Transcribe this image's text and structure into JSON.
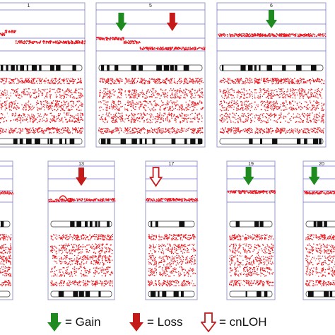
{
  "colors": {
    "gain": "#1f8a1f",
    "loss": "#c41a1a",
    "cnloh_outline": "#c41a1a",
    "dots": "#e8141a",
    "panel_border": "#9a9ac8",
    "grid": "#6b6bd6",
    "band_dark": "#111111"
  },
  "panels": [
    {
      "chromosome": "1",
      "markers": []
    },
    {
      "chromosome": "5",
      "markers": [
        "gain",
        "loss"
      ]
    },
    {
      "chromosome": "6",
      "markers": [
        "gain"
      ]
    },
    {
      "chromosome": "",
      "markers": []
    },
    {
      "chromosome": "13",
      "markers": [
        "loss"
      ]
    },
    {
      "chromosome": "17",
      "markers": [
        "cnloh"
      ]
    },
    {
      "chromosome": "19",
      "markers": [
        "gain"
      ]
    },
    {
      "chromosome": "20",
      "markers": [
        "gain"
      ]
    }
  ],
  "legend": {
    "gain": "= Gain",
    "loss": "= Loss",
    "cnloh": "= cnLOH"
  }
}
